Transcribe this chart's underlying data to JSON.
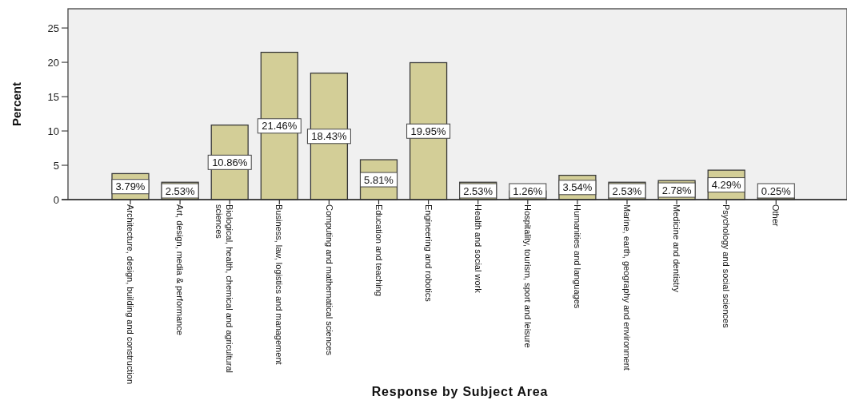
{
  "chart_data": {
    "type": "bar",
    "xlabel": "Response by Subject Area",
    "ylabel": "Percent",
    "categories": [
      "Architecture, design, building and construction",
      "Art, design, media & performance",
      "Biological, health, chemical and agricultural sciences",
      "Business, law, logistics and management",
      "Computing and mathematical sciences",
      "Education and teaching",
      "Engineering and robotics",
      "Health and social work",
      "Hospitality, tourism, sport and leisure",
      "Humanities and languages",
      "Marine, earth, geography and environment",
      "Medicine and dentistry",
      "Psychology and social sciences",
      "Other"
    ],
    "values": [
      3.79,
      2.53,
      10.86,
      21.46,
      18.43,
      5.81,
      19.95,
      2.53,
      1.26,
      3.54,
      2.53,
      2.78,
      4.29,
      0.25
    ],
    "value_labels": [
      "3.79%",
      "2.53%",
      "10.86%",
      "21.46%",
      "18.43%",
      "5.81%",
      "19.95%",
      "2.53%",
      "1.26%",
      "3.54%",
      "2.53%",
      "2.78%",
      "4.29%",
      "0.25%"
    ],
    "color": "#d3ce97",
    "ylim": [
      0,
      27.8
    ],
    "yticks": [
      0,
      5,
      10,
      15,
      20,
      25
    ],
    "grid": false
  }
}
